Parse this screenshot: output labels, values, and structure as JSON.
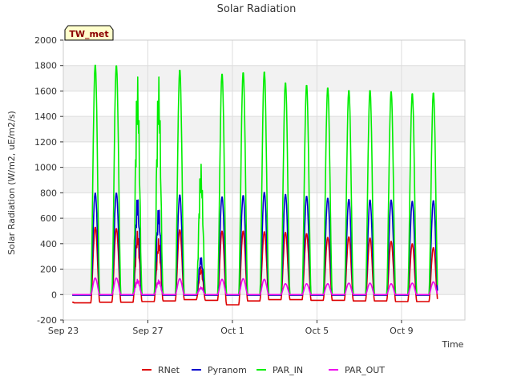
{
  "chart_data": {
    "type": "line",
    "title": "Solar Radiation",
    "xlabel": "Time",
    "ylabel": "Solar Radiation (W/m2, uE/m2/s)",
    "ylim": [
      -200,
      2000
    ],
    "yticks": [
      -200,
      0,
      200,
      400,
      600,
      800,
      1000,
      1200,
      1400,
      1600,
      1800,
      2000
    ],
    "xlim_days": [
      0,
      19
    ],
    "xticks": [
      {
        "day": 0,
        "label": "Sep 23"
      },
      {
        "day": 4,
        "label": "Sep 27"
      },
      {
        "day": 8,
        "label": "Oct 1"
      },
      {
        "day": 12,
        "label": "Oct 5"
      },
      {
        "day": 16,
        "label": "Oct 9"
      }
    ],
    "badge": "TW_met",
    "grid": true,
    "legend_position": "bottom",
    "series": [
      {
        "name": "RNet",
        "color": "#dd0000",
        "night": [
          -60,
          -65,
          -60,
          -60,
          -55,
          -50,
          -40,
          -45,
          -80,
          -50,
          -40,
          -40,
          -45,
          -45,
          -50,
          -50,
          -55,
          -55
        ],
        "peaks": [
          530,
          520,
          500,
          440,
          510,
          220,
          500,
          500,
          495,
          490,
          480,
          450,
          455,
          445,
          420,
          400,
          370
        ]
      },
      {
        "name": "Pyranom",
        "color": "#0000cc",
        "night": [
          -5,
          -5,
          -5,
          -5,
          -5,
          -5,
          -5,
          -5,
          -5,
          -5,
          -5,
          -5,
          -5,
          -5,
          -5,
          -5,
          -5,
          -5
        ],
        "peaks": [
          800,
          800,
          775,
          690,
          785,
          300,
          770,
          780,
          805,
          790,
          775,
          760,
          750,
          745,
          745,
          735,
          740
        ]
      },
      {
        "name": "PAR_IN",
        "color": "#00ee00",
        "night": [
          0,
          0,
          0,
          0,
          0,
          0,
          0,
          0,
          0,
          0,
          0,
          0,
          0,
          0,
          0,
          0,
          0,
          0
        ],
        "peaks": [
          1810,
          1805,
          1720,
          1720,
          1770,
          1030,
          1740,
          1750,
          1755,
          1670,
          1650,
          1630,
          1610,
          1610,
          1600,
          1585,
          1590
        ]
      },
      {
        "name": "PAR_OUT",
        "color": "#ee00ee",
        "night": [
          0,
          0,
          0,
          0,
          0,
          0,
          0,
          0,
          0,
          0,
          0,
          0,
          0,
          0,
          0,
          0,
          0,
          0
        ],
        "peaks": [
          130,
          130,
          120,
          115,
          125,
          60,
          120,
          125,
          120,
          85,
          85,
          85,
          90,
          90,
          85,
          90,
          100
        ]
      }
    ]
  }
}
